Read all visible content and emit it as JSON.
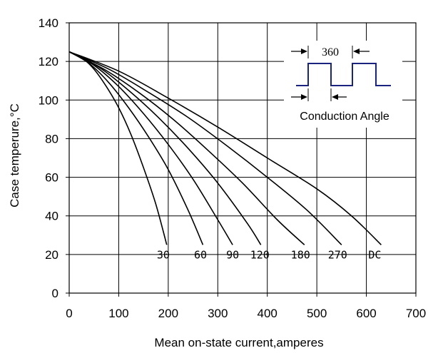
{
  "chart_data": {
    "type": "line",
    "title": "",
    "xlabel": "Mean on-state current,amperes",
    "ylabel": "Case temperure,°C",
    "xlim": [
      0,
      700
    ],
    "ylim": [
      0,
      140
    ],
    "xticks": [
      0,
      100,
      200,
      300,
      400,
      500,
      600,
      700
    ],
    "yticks": [
      0,
      20,
      40,
      60,
      80,
      100,
      120,
      140
    ],
    "grid": true,
    "series": [
      {
        "name": "30",
        "x": [
          0,
          25,
          50,
          75,
          100,
          125,
          150,
          175,
          197
        ],
        "y": [
          125,
          122,
          116,
          107,
          96,
          82,
          65,
          46,
          25
        ]
      },
      {
        "name": "60",
        "x": [
          0,
          40,
          80,
          120,
          160,
          200,
          240,
          270
        ],
        "y": [
          125,
          119,
          109,
          96,
          81,
          64,
          43,
          25
        ]
      },
      {
        "name": "90",
        "x": [
          0,
          50,
          100,
          150,
          200,
          250,
          300,
          330
        ],
        "y": [
          125,
          118,
          107,
          93,
          77,
          59,
          38,
          25
        ]
      },
      {
        "name": "120",
        "x": [
          0,
          60,
          120,
          180,
          240,
          300,
          360,
          387
        ],
        "y": [
          125,
          117,
          105,
          91,
          75,
          57,
          36,
          25
        ]
      },
      {
        "name": "180",
        "x": [
          0,
          70,
          140,
          210,
          280,
          350,
          420,
          475
        ],
        "y": [
          125,
          116,
          104,
          90,
          74,
          57,
          38,
          25
        ]
      },
      {
        "name": "270",
        "x": [
          0,
          80,
          160,
          240,
          320,
          400,
          480,
          550
        ],
        "y": [
          125,
          116,
          104,
          91,
          76,
          60,
          43,
          25
        ]
      },
      {
        "name": "DC",
        "x": [
          0,
          100,
          200,
          300,
          400,
          500,
          570,
          630
        ],
        "y": [
          125,
          115,
          101,
          86,
          70,
          54,
          40,
          25
        ]
      }
    ],
    "curve_labels": [
      {
        "text": "30",
        "x": 190,
        "y": 18
      },
      {
        "text": "60",
        "x": 265,
        "y": 18
      },
      {
        "text": "90",
        "x": 330,
        "y": 18
      },
      {
        "text": "120",
        "x": 385,
        "y": 18
      },
      {
        "text": "180",
        "x": 467,
        "y": 18
      },
      {
        "text": "270",
        "x": 542,
        "y": 18
      },
      {
        "text": "DC",
        "x": 617,
        "y": 18
      }
    ],
    "inset": {
      "top_label": "360",
      "bottom_label": "Conduction Angle",
      "waveform_color": "#1a237e"
    },
    "line_color": "#000000",
    "grid_color": "#000000"
  }
}
